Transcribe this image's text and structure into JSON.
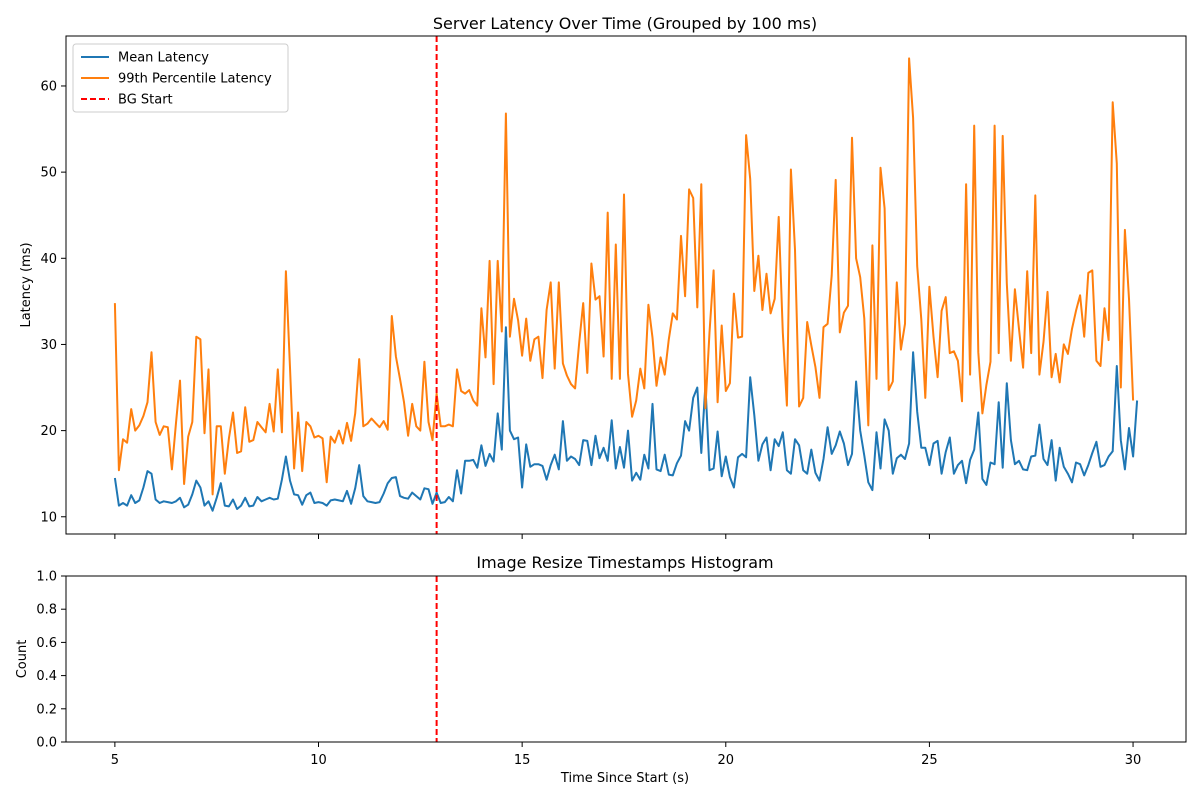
{
  "chart_data": [
    {
      "type": "line",
      "title": "Server Latency Over Time (Grouped by 100 ms)",
      "xlabel": "",
      "ylabel": "Latency (ms)",
      "xlim": [
        3.8,
        31.3
      ],
      "ylim": [
        8,
        65.8
      ],
      "xticks": [
        5,
        10,
        15,
        20,
        25,
        30
      ],
      "xtick_labels": [
        "",
        "",
        "",
        "",
        "",
        ""
      ],
      "yticks": [
        10,
        20,
        30,
        40,
        50,
        60
      ],
      "ytick_labels": [
        "10",
        "20",
        "30",
        "40",
        "50",
        "60"
      ],
      "grid": false,
      "legend_position": "upper-left",
      "x_start": 5.0,
      "x_step": 0.1,
      "series": [
        {
          "name": "Mean Latency",
          "color": "#1f77b4",
          "style": "solid",
          "values": [
            14.5,
            11.3,
            11.6,
            11.3,
            12.5,
            11.6,
            11.9,
            13.4,
            15.3,
            15.0,
            12.0,
            11.6,
            11.8,
            11.7,
            11.6,
            11.8,
            12.2,
            11.1,
            11.4,
            12.6,
            14.2,
            13.4,
            11.3,
            11.8,
            10.7,
            12.2,
            13.9,
            11.3,
            11.2,
            12.0,
            10.9,
            11.3,
            12.2,
            11.2,
            11.3,
            12.3,
            11.8,
            12.0,
            12.2,
            12.0,
            12.1,
            14.3,
            17.0,
            14.2,
            12.6,
            12.5,
            11.4,
            12.5,
            12.8,
            11.6,
            11.7,
            11.6,
            11.3,
            11.9,
            12.0,
            11.9,
            11.8,
            13.0,
            11.5,
            13.3,
            16.0,
            12.4,
            11.8,
            11.7,
            11.6,
            11.7,
            12.7,
            13.9,
            14.5,
            14.6,
            12.4,
            12.2,
            12.1,
            12.8,
            12.4,
            12.0,
            13.3,
            13.2,
            11.5,
            12.8,
            11.6,
            11.7,
            12.3,
            11.8,
            15.4,
            12.7,
            16.5,
            16.5,
            16.6,
            15.7,
            18.3,
            15.9,
            17.3,
            16.4,
            22.0,
            17.8,
            32.0,
            20.0,
            19.0,
            19.2,
            13.4,
            18.4,
            15.8,
            16.1,
            16.1,
            15.9,
            14.3,
            16.0,
            17.2,
            15.5,
            21.1,
            16.5,
            17.0,
            16.7,
            16.0,
            18.9,
            18.8,
            16.0,
            19.4,
            16.8,
            18.0,
            16.5,
            21.2,
            15.6,
            18.1,
            15.7,
            20.0,
            14.2,
            15.1,
            14.3,
            17.2,
            15.6,
            23.1,
            15.5,
            15.3,
            17.2,
            14.9,
            14.8,
            16.2,
            17.1,
            21.1,
            20.0,
            23.8,
            25.0,
            17.4,
            25.3,
            15.4,
            15.6,
            19.9,
            14.7,
            17.0,
            14.6,
            13.4,
            16.9,
            17.3,
            16.9,
            26.2,
            21.8,
            16.5,
            18.4,
            19.2,
            15.4,
            19.0,
            18.2,
            19.8,
            15.4,
            15.0,
            19.0,
            18.3,
            15.4,
            15.0,
            17.8,
            15.1,
            14.2,
            16.7,
            20.4,
            17.3,
            18.3,
            19.9,
            18.5,
            16.0,
            17.3,
            25.7,
            20.0,
            17.1,
            14.0,
            13.1,
            19.8,
            15.6,
            21.3,
            20.0,
            15.0,
            16.8,
            17.2,
            16.7,
            18.5,
            29.1,
            22.2,
            18.0,
            18.0,
            16.0,
            18.5,
            18.8,
            15.0,
            17.5,
            19.2,
            15.0,
            16.0,
            16.5,
            13.9,
            16.6,
            17.8,
            22.1,
            14.4,
            13.7,
            16.3,
            16.1,
            23.3,
            15.7,
            25.5,
            18.9,
            16.1,
            16.5,
            15.5,
            15.4,
            17.0,
            17.1,
            20.7,
            16.7,
            16.0,
            18.9,
            14.2,
            18.0,
            15.8,
            15.0,
            14.0,
            16.3,
            16.1,
            14.8,
            16.0,
            17.4,
            18.7,
            15.8,
            16.0,
            17.0,
            17.6,
            27.5,
            18.9,
            15.5,
            20.3,
            17.0,
            23.5
          ]
        },
        {
          "name": "99th Percentile Latency",
          "color": "#ff7f0e",
          "style": "solid",
          "values": [
            34.8,
            15.4,
            19.0,
            18.6,
            22.5,
            20.0,
            20.6,
            21.7,
            23.3,
            29.1,
            21.0,
            19.5,
            20.5,
            20.4,
            15.5,
            20.9,
            25.8,
            13.8,
            19.3,
            21.0,
            30.9,
            30.6,
            19.7,
            27.1,
            12.6,
            20.5,
            20.5,
            15.0,
            19.1,
            22.1,
            17.4,
            17.6,
            22.7,
            18.7,
            18.9,
            21.0,
            20.4,
            19.8,
            23.1,
            19.9,
            27.1,
            19.8,
            38.5,
            27.3,
            15.6,
            22.1,
            15.3,
            21.0,
            20.5,
            19.2,
            19.4,
            19.1,
            14.0,
            19.3,
            18.6,
            20.0,
            18.5,
            20.9,
            18.8,
            22.0,
            28.3,
            20.5,
            20.8,
            21.4,
            20.9,
            20.4,
            21.1,
            20.1,
            33.3,
            28.6,
            26.0,
            23.3,
            19.4,
            23.1,
            20.5,
            20.0,
            28.0,
            21.0,
            18.9,
            24.3,
            20.5,
            20.5,
            20.7,
            20.5,
            27.1,
            24.6,
            24.3,
            24.7,
            23.5,
            22.9,
            34.2,
            28.5,
            39.7,
            25.4,
            39.7,
            31.5,
            56.8,
            30.9,
            35.3,
            32.8,
            28.7,
            33.0,
            28.1,
            30.6,
            30.9,
            26.1,
            34.0,
            37.2,
            27.2,
            37.2,
            27.8,
            26.4,
            25.4,
            24.9,
            30.2,
            34.8,
            26.7,
            39.4,
            35.2,
            35.6,
            28.6,
            45.3,
            26.0,
            41.6,
            26.0,
            47.4,
            26.6,
            21.6,
            23.5,
            27.2,
            24.9,
            34.6,
            30.8,
            25.2,
            28.5,
            26.5,
            30.6,
            33.6,
            32.9,
            42.6,
            35.6,
            48.0,
            47.0,
            34.3,
            48.6,
            22.6,
            31.4,
            38.6,
            23.3,
            32.2,
            24.6,
            25.5,
            35.9,
            30.8,
            30.9,
            54.3,
            49.2,
            36.2,
            40.3,
            34.0,
            38.2,
            33.6,
            35.3,
            44.8,
            31.4,
            22.9,
            50.3,
            41.0,
            22.8,
            23.8,
            32.6,
            29.9,
            27.4,
            23.8,
            32.0,
            32.4,
            38.0,
            49.1,
            31.4,
            33.7,
            34.5,
            54.0,
            40.0,
            37.8,
            33.0,
            20.6,
            41.5,
            26.0,
            50.5,
            45.8,
            24.7,
            25.7,
            37.2,
            29.4,
            32.4,
            63.2,
            56.3,
            39.1,
            32.9,
            23.8,
            36.7,
            30.9,
            26.2,
            33.9,
            35.5,
            29.0,
            29.2,
            28.1,
            23.4,
            48.6,
            26.5,
            55.4,
            29.1,
            22.0,
            25.3,
            28.0,
            55.4,
            29.0,
            54.2,
            37.1,
            28.1,
            36.4,
            31.8,
            27.3,
            38.5,
            29.0,
            47.3,
            26.5,
            30.3,
            36.1,
            26.2,
            28.9,
            25.6,
            30.0,
            28.9,
            31.8,
            33.9,
            35.7,
            30.9,
            38.3,
            38.6,
            28.1,
            27.5,
            34.2,
            30.5,
            58.1,
            51.0,
            25.0,
            43.3,
            35.3,
            23.5
          ]
        }
      ],
      "vline": {
        "name": "BG Start",
        "x": 12.9,
        "color": "#ff0000",
        "style": "dashed"
      },
      "legend": [
        "Mean Latency",
        "99th Percentile Latency",
        "BG Start"
      ]
    },
    {
      "type": "histogram",
      "title": "Image Resize Timestamps Histogram",
      "xlabel": "Time Since Start (s)",
      "ylabel": "Count",
      "xlim": [
        3.8,
        31.3
      ],
      "ylim": [
        0,
        1
      ],
      "xticks": [
        5,
        10,
        15,
        20,
        25,
        30
      ],
      "xtick_labels": [
        "5",
        "10",
        "15",
        "20",
        "25",
        "30"
      ],
      "yticks": [
        0.0,
        0.2,
        0.4,
        0.6,
        0.8,
        1.0
      ],
      "ytick_labels": [
        "0.0",
        "0.2",
        "0.4",
        "0.6",
        "0.8",
        "1.0"
      ],
      "grid": false,
      "values": [],
      "vline": {
        "x": 12.9,
        "color": "#ff0000",
        "style": "dashed"
      }
    }
  ]
}
